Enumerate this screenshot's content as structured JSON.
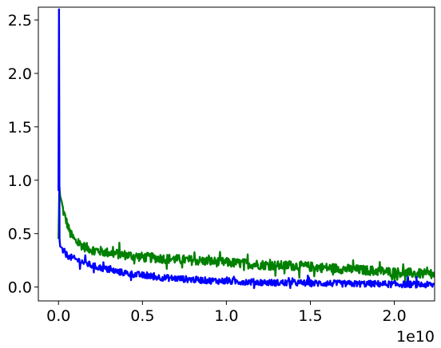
{
  "chart_data": {
    "type": "line",
    "title": "",
    "xlabel": "",
    "ylabel": "",
    "x_offset_label": "1e10",
    "xlim": [
      -0.12,
      2.24
    ],
    "ylim": [
      -0.13,
      2.62
    ],
    "x_ticks": [
      0.0,
      0.5,
      1.0,
      1.5,
      2.0
    ],
    "x_tick_labels": [
      "0.0",
      "0.5",
      "1.0",
      "1.5",
      "2.0"
    ],
    "y_ticks": [
      0.0,
      0.5,
      1.0,
      1.5,
      2.0,
      2.5
    ],
    "y_tick_labels": [
      "0.0",
      "0.5",
      "1.0",
      "1.5",
      "2.0",
      "2.5"
    ],
    "grid": false,
    "legend": "none",
    "series": [
      {
        "color": "#008000",
        "x": [
          0.0,
          0.005,
          0.01,
          0.02,
          0.03,
          0.05,
          0.07,
          0.1,
          0.15,
          0.2,
          0.3,
          0.4,
          0.5,
          0.6,
          0.7,
          0.8,
          0.9,
          1.0,
          1.1,
          1.2,
          1.3,
          1.4,
          1.5,
          1.6,
          1.7,
          1.8,
          1.9,
          2.0,
          2.1,
          2.2,
          2.24
        ],
        "y": [
          0.45,
          0.95,
          0.85,
          0.78,
          0.7,
          0.6,
          0.5,
          0.43,
          0.38,
          0.35,
          0.32,
          0.3,
          0.28,
          0.27,
          0.26,
          0.25,
          0.24,
          0.23,
          0.22,
          0.21,
          0.2,
          0.2,
          0.19,
          0.18,
          0.17,
          0.16,
          0.15,
          0.14,
          0.13,
          0.12,
          0.11
        ]
      },
      {
        "color": "#0000ff",
        "x": [
          0.0,
          0.003,
          0.006,
          0.01,
          0.02,
          0.03,
          0.05,
          0.07,
          0.1,
          0.15,
          0.2,
          0.3,
          0.4,
          0.5,
          0.6,
          0.7,
          0.8,
          0.9,
          1.0,
          1.1,
          1.2,
          1.3,
          1.4,
          1.5,
          1.6,
          1.7,
          1.8,
          1.9,
          2.0,
          2.1,
          2.2,
          2.24
        ],
        "y": [
          0.9,
          2.6,
          0.45,
          0.38,
          0.35,
          0.33,
          0.3,
          0.28,
          0.26,
          0.23,
          0.2,
          0.16,
          0.13,
          0.11,
          0.09,
          0.08,
          0.07,
          0.06,
          0.055,
          0.05,
          0.045,
          0.04,
          0.04,
          0.035,
          0.035,
          0.03,
          0.03,
          0.03,
          0.025,
          0.025,
          0.02,
          0.02
        ]
      }
    ]
  }
}
